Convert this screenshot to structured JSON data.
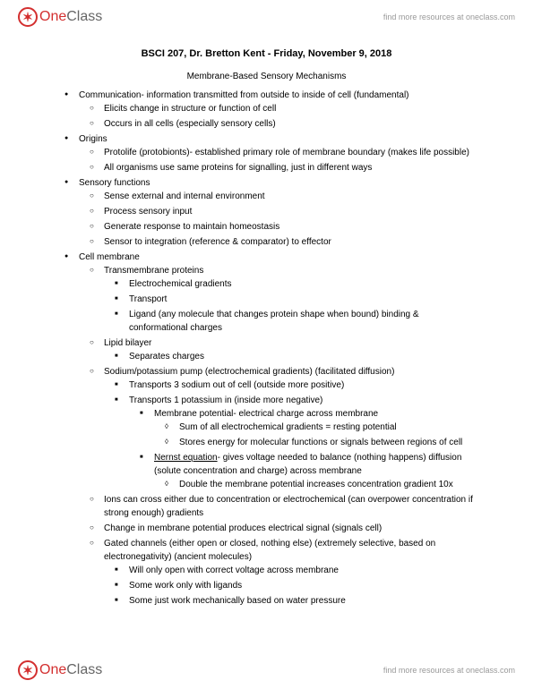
{
  "header": {
    "logo_one": "One",
    "logo_class": "Class",
    "link": "find more resources at oneclass.com"
  },
  "doc": {
    "title": "BSCI 207, Dr. Bretton Kent - Friday, November 9, 2018",
    "subtitle": "Membrane-Based Sensory Mechanisms",
    "b1": "Communication- information transmitted from outside to inside of cell (fundamental)",
    "b1a": "Elicits change in structure or function of cell",
    "b1b": "Occurs in all cells (especially sensory cells)",
    "b2": "Origins",
    "b2a": "Protolife (protobionts)- established primary role of membrane boundary (makes life possible)",
    "b2b": "All organisms use same proteins for signalling, just in different ways",
    "b3": "Sensory functions",
    "b3a": "Sense external and internal environment",
    "b3b": "Process sensory input",
    "b3c": "Generate response to maintain homeostasis",
    "b3d": "Sensor to integration (reference & comparator) to effector",
    "b4": "Cell membrane",
    "b4a": "Transmembrane proteins",
    "b4a1": "Electrochemical gradients",
    "b4a2": "Transport",
    "b4a3": "Ligand (any molecule that changes protein shape when bound) binding & conformational charges",
    "b4b": "Lipid bilayer",
    "b4b1": "Separates charges",
    "b4c": "Sodium/potassium pump (electrochemical gradients) (facilitated diffusion)",
    "b4c1": "Transports 3 sodium out of cell (outside more positive)",
    "b4c2": "Transports 1 potassium in (inside more negative)",
    "b4c2a": "Membrane potential- electrical charge across membrane",
    "b4c2a1": "Sum of all electrochemical gradients = resting potential",
    "b4c2a2": "Stores energy for molecular functions or signals between regions of cell",
    "b4c2b_u": "Nernst equation",
    "b4c2b_rest": "- gives voltage needed to balance (nothing happens) diffusion (solute concentration and charge) across membrane",
    "b4c2b1": "Double the membrane potential increases concentration gradient 10x",
    "b4d": "Ions can cross either due to concentration or electrochemical (can overpower concentration if strong enough) gradients",
    "b4e": "Change in membrane potential produces electrical signal (signals cell)",
    "b4f": "Gated channels (either open or closed, nothing else) (extremely selective, based on electronegativity) (ancient molecules)",
    "b4f1": "Will only open with correct voltage across membrane",
    "b4f2": "Some work only with ligands",
    "b4f3": "Some just work mechanically based on water pressure"
  },
  "colors": {
    "text": "#000000",
    "logo_red": "#d32f2f",
    "logo_gray": "#666666",
    "link_gray": "#999999",
    "background": "#ffffff"
  }
}
